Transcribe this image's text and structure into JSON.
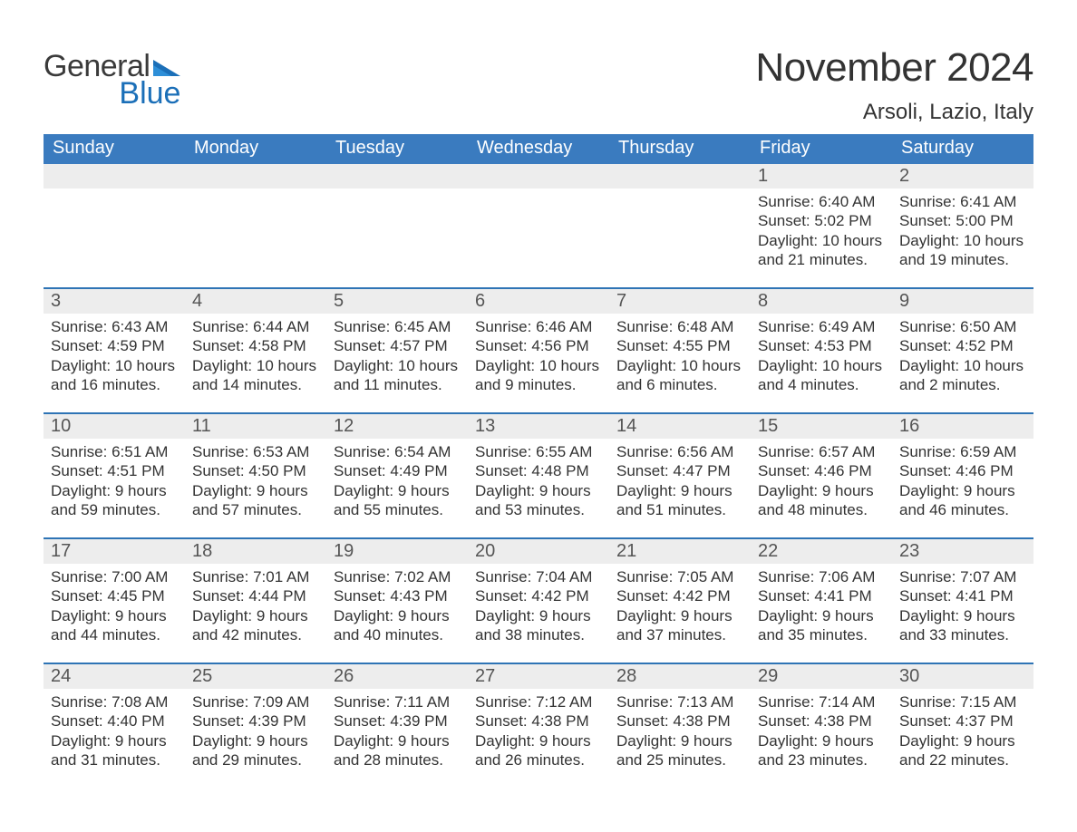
{
  "colors": {
    "header_bg": "#3a7bbf",
    "header_text": "#ffffff",
    "week_divider": "#2e74b5",
    "day_bar_bg": "#ededed",
    "day_bar_text": "#555555",
    "body_text": "#333333",
    "logo_blue": "#1b6fb8",
    "page_bg": "#ffffff"
  },
  "typography": {
    "title_fontsize": 44,
    "location_fontsize": 24,
    "weekday_fontsize": 20,
    "daynum_fontsize": 20,
    "body_fontsize": 17,
    "font_family": "Segoe UI / Arial"
  },
  "logo": {
    "top_word": "General",
    "bottom_word": "Blue"
  },
  "title": "November 2024",
  "location": "Arsoli, Lazio, Italy",
  "weekdays": [
    "Sunday",
    "Monday",
    "Tuesday",
    "Wednesday",
    "Thursday",
    "Friday",
    "Saturday"
  ],
  "labels": {
    "sunrise": "Sunrise:",
    "sunset": "Sunset:",
    "daylight_prefix": "Daylight:"
  },
  "weeks": [
    [
      null,
      null,
      null,
      null,
      null,
      {
        "day": "1",
        "sunrise": "6:40 AM",
        "sunset": "5:02 PM",
        "daylight1": "Daylight: 10 hours",
        "daylight2": "and 21 minutes."
      },
      {
        "day": "2",
        "sunrise": "6:41 AM",
        "sunset": "5:00 PM",
        "daylight1": "Daylight: 10 hours",
        "daylight2": "and 19 minutes."
      }
    ],
    [
      {
        "day": "3",
        "sunrise": "6:43 AM",
        "sunset": "4:59 PM",
        "daylight1": "Daylight: 10 hours",
        "daylight2": "and 16 minutes."
      },
      {
        "day": "4",
        "sunrise": "6:44 AM",
        "sunset": "4:58 PM",
        "daylight1": "Daylight: 10 hours",
        "daylight2": "and 14 minutes."
      },
      {
        "day": "5",
        "sunrise": "6:45 AM",
        "sunset": "4:57 PM",
        "daylight1": "Daylight: 10 hours",
        "daylight2": "and 11 minutes."
      },
      {
        "day": "6",
        "sunrise": "6:46 AM",
        "sunset": "4:56 PM",
        "daylight1": "Daylight: 10 hours",
        "daylight2": "and 9 minutes."
      },
      {
        "day": "7",
        "sunrise": "6:48 AM",
        "sunset": "4:55 PM",
        "daylight1": "Daylight: 10 hours",
        "daylight2": "and 6 minutes."
      },
      {
        "day": "8",
        "sunrise": "6:49 AM",
        "sunset": "4:53 PM",
        "daylight1": "Daylight: 10 hours",
        "daylight2": "and 4 minutes."
      },
      {
        "day": "9",
        "sunrise": "6:50 AM",
        "sunset": "4:52 PM",
        "daylight1": "Daylight: 10 hours",
        "daylight2": "and 2 minutes."
      }
    ],
    [
      {
        "day": "10",
        "sunrise": "6:51 AM",
        "sunset": "4:51 PM",
        "daylight1": "Daylight: 9 hours",
        "daylight2": "and 59 minutes."
      },
      {
        "day": "11",
        "sunrise": "6:53 AM",
        "sunset": "4:50 PM",
        "daylight1": "Daylight: 9 hours",
        "daylight2": "and 57 minutes."
      },
      {
        "day": "12",
        "sunrise": "6:54 AM",
        "sunset": "4:49 PM",
        "daylight1": "Daylight: 9 hours",
        "daylight2": "and 55 minutes."
      },
      {
        "day": "13",
        "sunrise": "6:55 AM",
        "sunset": "4:48 PM",
        "daylight1": "Daylight: 9 hours",
        "daylight2": "and 53 minutes."
      },
      {
        "day": "14",
        "sunrise": "6:56 AM",
        "sunset": "4:47 PM",
        "daylight1": "Daylight: 9 hours",
        "daylight2": "and 51 minutes."
      },
      {
        "day": "15",
        "sunrise": "6:57 AM",
        "sunset": "4:46 PM",
        "daylight1": "Daylight: 9 hours",
        "daylight2": "and 48 minutes."
      },
      {
        "day": "16",
        "sunrise": "6:59 AM",
        "sunset": "4:46 PM",
        "daylight1": "Daylight: 9 hours",
        "daylight2": "and 46 minutes."
      }
    ],
    [
      {
        "day": "17",
        "sunrise": "7:00 AM",
        "sunset": "4:45 PM",
        "daylight1": "Daylight: 9 hours",
        "daylight2": "and 44 minutes."
      },
      {
        "day": "18",
        "sunrise": "7:01 AM",
        "sunset": "4:44 PM",
        "daylight1": "Daylight: 9 hours",
        "daylight2": "and 42 minutes."
      },
      {
        "day": "19",
        "sunrise": "7:02 AM",
        "sunset": "4:43 PM",
        "daylight1": "Daylight: 9 hours",
        "daylight2": "and 40 minutes."
      },
      {
        "day": "20",
        "sunrise": "7:04 AM",
        "sunset": "4:42 PM",
        "daylight1": "Daylight: 9 hours",
        "daylight2": "and 38 minutes."
      },
      {
        "day": "21",
        "sunrise": "7:05 AM",
        "sunset": "4:42 PM",
        "daylight1": "Daylight: 9 hours",
        "daylight2": "and 37 minutes."
      },
      {
        "day": "22",
        "sunrise": "7:06 AM",
        "sunset": "4:41 PM",
        "daylight1": "Daylight: 9 hours",
        "daylight2": "and 35 minutes."
      },
      {
        "day": "23",
        "sunrise": "7:07 AM",
        "sunset": "4:41 PM",
        "daylight1": "Daylight: 9 hours",
        "daylight2": "and 33 minutes."
      }
    ],
    [
      {
        "day": "24",
        "sunrise": "7:08 AM",
        "sunset": "4:40 PM",
        "daylight1": "Daylight: 9 hours",
        "daylight2": "and 31 minutes."
      },
      {
        "day": "25",
        "sunrise": "7:09 AM",
        "sunset": "4:39 PM",
        "daylight1": "Daylight: 9 hours",
        "daylight2": "and 29 minutes."
      },
      {
        "day": "26",
        "sunrise": "7:11 AM",
        "sunset": "4:39 PM",
        "daylight1": "Daylight: 9 hours",
        "daylight2": "and 28 minutes."
      },
      {
        "day": "27",
        "sunrise": "7:12 AM",
        "sunset": "4:38 PM",
        "daylight1": "Daylight: 9 hours",
        "daylight2": "and 26 minutes."
      },
      {
        "day": "28",
        "sunrise": "7:13 AM",
        "sunset": "4:38 PM",
        "daylight1": "Daylight: 9 hours",
        "daylight2": "and 25 minutes."
      },
      {
        "day": "29",
        "sunrise": "7:14 AM",
        "sunset": "4:38 PM",
        "daylight1": "Daylight: 9 hours",
        "daylight2": "and 23 minutes."
      },
      {
        "day": "30",
        "sunrise": "7:15 AM",
        "sunset": "4:37 PM",
        "daylight1": "Daylight: 9 hours",
        "daylight2": "and 22 minutes."
      }
    ]
  ]
}
